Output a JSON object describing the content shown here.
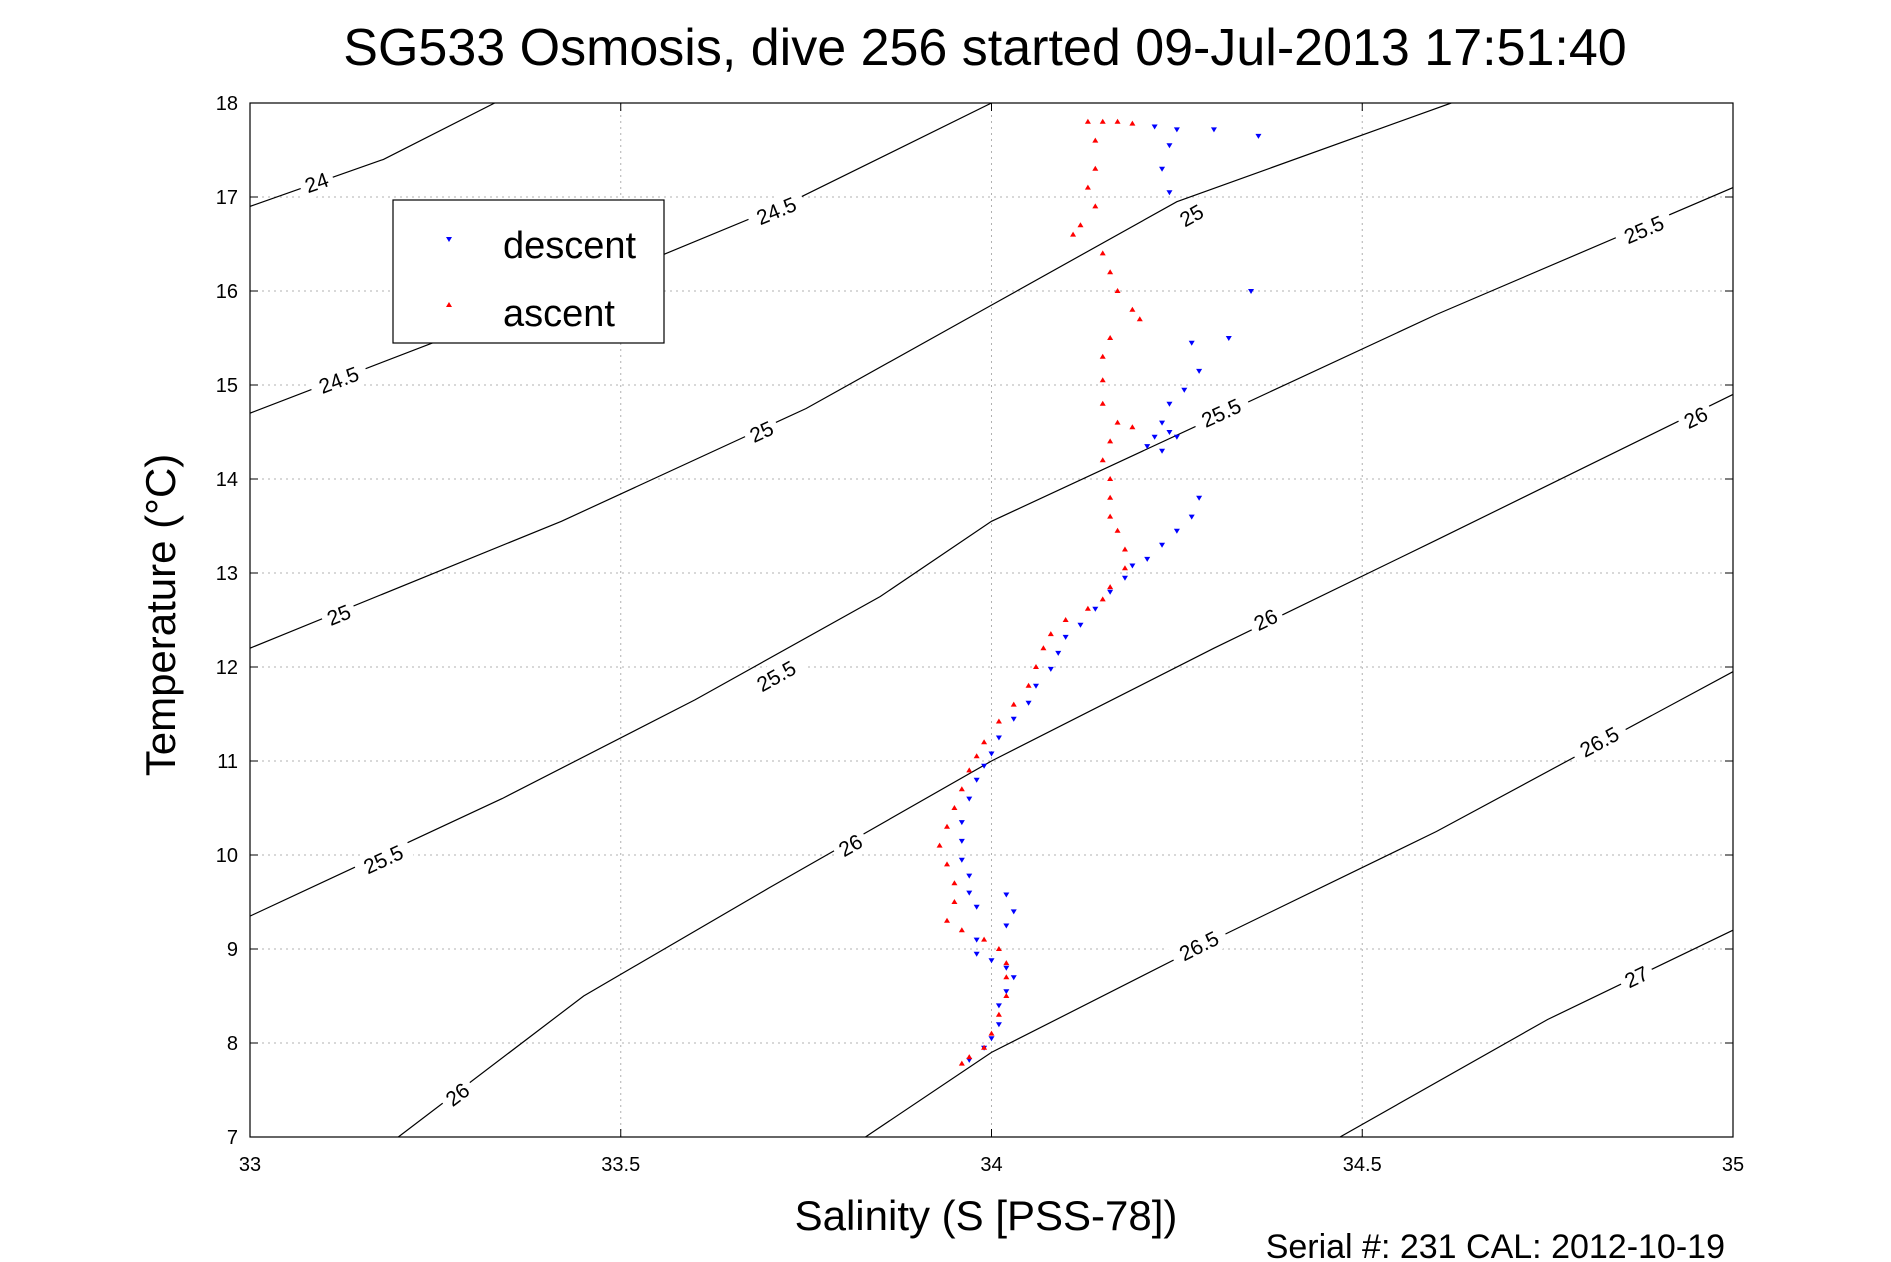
{
  "chart_data": {
    "type": "scatter",
    "title": "SG533 Osmosis, dive 256 started 09-Jul-2013 17:51:40",
    "xlabel": "Salinity (S [PSS-78])",
    "ylabel": "Temperature (°C)",
    "xlim": [
      33,
      35
    ],
    "ylim": [
      7,
      18
    ],
    "x_ticks": [
      "33",
      "33.5",
      "34",
      "34.5",
      "35"
    ],
    "y_ticks": [
      "7",
      "8",
      "9",
      "10",
      "11",
      "12",
      "13",
      "14",
      "15",
      "16",
      "17",
      "18"
    ],
    "grid": true,
    "legend_position": "top-left",
    "footer": "Serial #: 231  CAL: 2012-10-19",
    "contours": [
      {
        "label": "24",
        "points": [
          [
            33,
            16.9
          ],
          [
            33.18,
            17.4
          ],
          [
            33.33,
            18.0
          ]
        ],
        "labels_at": [
          [
            33.09,
            17.15
          ]
        ]
      },
      {
        "label": "24.5",
        "points": [
          [
            33,
            14.7
          ],
          [
            33.28,
            15.55
          ],
          [
            33.5,
            16.2
          ],
          [
            33.73,
            16.95
          ],
          [
            34.0,
            18.0
          ]
        ],
        "labels_at": [
          [
            33.12,
            15.05
          ],
          [
            33.71,
            16.85
          ]
        ]
      },
      {
        "label": "25",
        "points": [
          [
            33,
            12.2
          ],
          [
            33.42,
            13.55
          ],
          [
            33.75,
            14.75
          ],
          [
            34.0,
            15.85
          ],
          [
            34.25,
            16.95
          ],
          [
            34.62,
            18.0
          ]
        ],
        "labels_at": [
          [
            33.12,
            12.55
          ],
          [
            33.69,
            14.5
          ],
          [
            34.27,
            16.8
          ]
        ]
      },
      {
        "label": "25.5",
        "points": [
          [
            33,
            9.35
          ],
          [
            33.34,
            10.6
          ],
          [
            33.6,
            11.65
          ],
          [
            33.85,
            12.75
          ],
          [
            34.0,
            13.55
          ],
          [
            34.3,
            14.65
          ],
          [
            34.6,
            15.75
          ],
          [
            35.0,
            17.1
          ]
        ],
        "labels_at": [
          [
            33.18,
            9.95
          ],
          [
            33.71,
            11.9
          ],
          [
            34.31,
            14.7
          ],
          [
            34.88,
            16.65
          ]
        ]
      },
      {
        "label": "26",
        "points": [
          [
            33.2,
            7.0
          ],
          [
            33.45,
            8.5
          ],
          [
            33.7,
            9.65
          ],
          [
            34.0,
            11.0
          ],
          [
            34.3,
            12.2
          ],
          [
            34.6,
            13.35
          ],
          [
            35.0,
            14.9
          ]
        ],
        "labels_at": [
          [
            33.28,
            7.45
          ],
          [
            33.81,
            10.1
          ],
          [
            34.37,
            12.5
          ],
          [
            34.95,
            14.65
          ]
        ]
      },
      {
        "label": "26.5",
        "points": [
          [
            33.83,
            7.0
          ],
          [
            34.0,
            7.9
          ],
          [
            34.3,
            9.1
          ],
          [
            34.6,
            10.25
          ],
          [
            35.0,
            11.95
          ]
        ],
        "labels_at": [
          [
            34.28,
            9.03
          ],
          [
            34.82,
            11.2
          ]
        ]
      },
      {
        "label": "27",
        "points": [
          [
            34.47,
            7.0
          ],
          [
            34.75,
            8.25
          ],
          [
            35.0,
            9.2
          ]
        ],
        "labels_at": [
          [
            34.87,
            8.7
          ]
        ]
      }
    ],
    "series": [
      {
        "name": "descent",
        "color": "#0000ff",
        "marker": "triangle-down",
        "points": [
          [
            34.36,
            17.65
          ],
          [
            34.3,
            17.72
          ],
          [
            34.25,
            17.72
          ],
          [
            34.24,
            17.55
          ],
          [
            34.23,
            17.3
          ],
          [
            34.24,
            17.05
          ],
          [
            34.22,
            17.75
          ],
          [
            34.35,
            16.0
          ],
          [
            34.32,
            15.5
          ],
          [
            34.27,
            15.45
          ],
          [
            34.28,
            15.15
          ],
          [
            34.26,
            14.95
          ],
          [
            34.24,
            14.8
          ],
          [
            34.23,
            14.6
          ],
          [
            34.22,
            14.45
          ],
          [
            34.21,
            14.35
          ],
          [
            34.23,
            14.3
          ],
          [
            34.25,
            14.45
          ],
          [
            34.24,
            14.5
          ],
          [
            34.28,
            13.8
          ],
          [
            34.27,
            13.6
          ],
          [
            34.25,
            13.45
          ],
          [
            34.23,
            13.3
          ],
          [
            34.21,
            13.15
          ],
          [
            34.19,
            13.08
          ],
          [
            34.18,
            12.95
          ],
          [
            34.16,
            12.8
          ],
          [
            34.14,
            12.62
          ],
          [
            34.12,
            12.45
          ],
          [
            34.1,
            12.32
          ],
          [
            34.09,
            12.15
          ],
          [
            34.08,
            11.98
          ],
          [
            34.06,
            11.8
          ],
          [
            34.05,
            11.62
          ],
          [
            34.03,
            11.45
          ],
          [
            34.01,
            11.25
          ],
          [
            34.0,
            11.08
          ],
          [
            33.99,
            10.95
          ],
          [
            33.98,
            10.8
          ],
          [
            33.97,
            10.6
          ],
          [
            33.96,
            10.35
          ],
          [
            33.96,
            10.15
          ],
          [
            33.96,
            9.95
          ],
          [
            33.97,
            9.78
          ],
          [
            33.97,
            9.6
          ],
          [
            33.98,
            9.45
          ],
          [
            34.02,
            9.58
          ],
          [
            34.03,
            9.4
          ],
          [
            34.02,
            9.25
          ],
          [
            33.98,
            9.1
          ],
          [
            33.98,
            8.95
          ],
          [
            34.0,
            8.88
          ],
          [
            34.02,
            8.8
          ],
          [
            34.03,
            8.7
          ],
          [
            34.02,
            8.55
          ],
          [
            34.01,
            8.4
          ],
          [
            34.01,
            8.2
          ],
          [
            34.0,
            8.05
          ],
          [
            33.99,
            7.95
          ],
          [
            33.97,
            7.82
          ]
        ]
      },
      {
        "name": "ascent",
        "color": "#ff0000",
        "marker": "triangle-up",
        "points": [
          [
            34.13,
            17.8
          ],
          [
            34.15,
            17.8
          ],
          [
            34.17,
            17.8
          ],
          [
            34.19,
            17.78
          ],
          [
            34.14,
            17.6
          ],
          [
            34.14,
            17.3
          ],
          [
            34.13,
            17.1
          ],
          [
            34.14,
            16.9
          ],
          [
            34.12,
            16.7
          ],
          [
            34.11,
            16.6
          ],
          [
            34.15,
            16.4
          ],
          [
            34.16,
            16.2
          ],
          [
            34.17,
            16.0
          ],
          [
            34.19,
            15.8
          ],
          [
            34.2,
            15.7
          ],
          [
            34.16,
            15.5
          ],
          [
            34.15,
            15.3
          ],
          [
            34.15,
            15.05
          ],
          [
            34.15,
            14.8
          ],
          [
            34.17,
            14.6
          ],
          [
            34.19,
            14.55
          ],
          [
            34.16,
            14.4
          ],
          [
            34.15,
            14.2
          ],
          [
            34.16,
            14.0
          ],
          [
            34.16,
            13.8
          ],
          [
            34.16,
            13.6
          ],
          [
            34.17,
            13.45
          ],
          [
            34.18,
            13.25
          ],
          [
            34.18,
            13.05
          ],
          [
            34.16,
            12.85
          ],
          [
            34.15,
            12.72
          ],
          [
            34.13,
            12.62
          ],
          [
            34.1,
            12.5
          ],
          [
            34.08,
            12.35
          ],
          [
            34.07,
            12.2
          ],
          [
            34.06,
            12.0
          ],
          [
            34.05,
            11.8
          ],
          [
            34.03,
            11.6
          ],
          [
            34.01,
            11.42
          ],
          [
            33.99,
            11.2
          ],
          [
            33.98,
            11.05
          ],
          [
            33.97,
            10.9
          ],
          [
            33.96,
            10.7
          ],
          [
            33.95,
            10.5
          ],
          [
            33.94,
            10.3
          ],
          [
            33.93,
            10.1
          ],
          [
            33.94,
            9.9
          ],
          [
            33.95,
            9.7
          ],
          [
            33.95,
            9.5
          ],
          [
            33.94,
            9.3
          ],
          [
            33.96,
            9.2
          ],
          [
            33.99,
            9.1
          ],
          [
            34.01,
            9.0
          ],
          [
            34.02,
            8.85
          ],
          [
            34.02,
            8.7
          ],
          [
            34.02,
            8.5
          ],
          [
            34.01,
            8.3
          ],
          [
            34.0,
            8.1
          ],
          [
            33.99,
            7.95
          ],
          [
            33.97,
            7.85
          ],
          [
            33.96,
            7.78
          ]
        ]
      }
    ]
  }
}
